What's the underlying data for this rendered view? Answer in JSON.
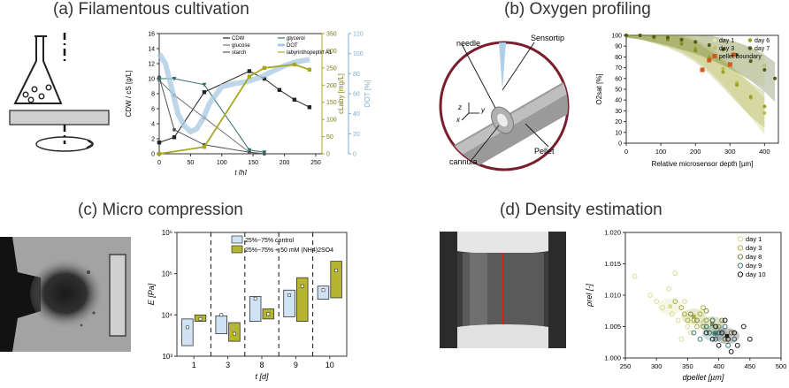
{
  "panels": {
    "a": {
      "title": "(a) Filamentous cultivation"
    },
    "b": {
      "title": "(b) Oxygen profiling"
    },
    "c": {
      "title": "(c) Micro compression"
    },
    "d": {
      "title": "(d) Density estimation"
    }
  },
  "colors": {
    "olive": "#a8a820",
    "olive_dark": "#7a7a10",
    "dot_blue": "#a8c8e0",
    "dot_axis": "#7aaed6",
    "maroon": "#7a1e2e",
    "box_blue": "#cfe3f5",
    "box_olive": "#b5b530",
    "pellet_orange": "#d05a1e"
  },
  "diagram_b": {
    "needle": "needle",
    "sensortip": "Sensortip",
    "cannula": "cannula",
    "pellet": "Pellet",
    "axis_x": "x",
    "axis_y": "y",
    "axis_z": "z"
  },
  "chart_data": [
    {
      "type": "line",
      "xlabel": "t [h]",
      "ylabel": "CDW / cS [g/L]",
      "ylabel_right1": "cLaby [mg/L]",
      "ylabel_right2": "DOT [%]",
      "xlim": [
        0,
        260
      ],
      "ylim": [
        0,
        16
      ],
      "ylim_right1": [
        0,
        350
      ],
      "ylim_right2": [
        0,
        120
      ],
      "x_ticks": [
        "0",
        "50",
        "100",
        "150",
        "200",
        "250"
      ],
      "y_ticks": [
        "0",
        "2",
        "4",
        "6",
        "8",
        "10",
        "12",
        "14",
        "16"
      ],
      "y_right1_ticks": [
        "0",
        "50",
        "100",
        "150",
        "200",
        "250",
        "300",
        "350"
      ],
      "y_right2_ticks": [
        "0",
        "20",
        "40",
        "60",
        "80",
        "100",
        "120"
      ],
      "series": [
        {
          "name": "CDW",
          "axis": "left",
          "x": [
            0,
            24,
            72,
            144,
            168,
            192,
            216,
            240
          ],
          "y": [
            1.5,
            2.2,
            8.2,
            11.0,
            10.0,
            8.5,
            7.2,
            6.2
          ]
        },
        {
          "name": "glucose",
          "axis": "left",
          "x": [
            0,
            24,
            72,
            144,
            168
          ],
          "y": [
            9.8,
            7.8,
            4.8,
            0.2,
            0.0
          ]
        },
        {
          "name": "starch",
          "axis": "left",
          "x": [
            0,
            24,
            72,
            144,
            168
          ],
          "y": [
            10.2,
            3.2,
            1.2,
            0.2,
            0.0
          ]
        },
        {
          "name": "glycerol",
          "axis": "left",
          "x": [
            0,
            24,
            72,
            144,
            168
          ],
          "y": [
            10.0,
            10.0,
            9.2,
            0.5,
            0.2
          ]
        },
        {
          "name": "DOT",
          "axis": "right2",
          "x": [
            0,
            10,
            20,
            30,
            40,
            50,
            60,
            70,
            80,
            100,
            120,
            140,
            160,
            180,
            200,
            220,
            240
          ],
          "y": [
            100,
            90,
            65,
            40,
            28,
            22,
            25,
            35,
            50,
            67,
            70,
            72,
            76,
            82,
            88,
            92,
            94
          ]
        },
        {
          "name": "labyrinthopeptin A1",
          "axis": "right1",
          "x": [
            0,
            72,
            144,
            168,
            216,
            240
          ],
          "y": [
            0,
            20,
            225,
            250,
            260,
            245
          ]
        }
      ]
    },
    {
      "type": "scatter",
      "xlabel": "Relative microsensor depth [µm]",
      "ylabel": "O2sat [%]",
      "xlim": [
        0,
        440
      ],
      "ylim": [
        0,
        100
      ],
      "x_ticks": [
        "0",
        "100",
        "200",
        "300",
        "400"
      ],
      "y_ticks": [
        "0",
        "10",
        "20",
        "30",
        "40",
        "50",
        "60",
        "70",
        "80",
        "90",
        "100"
      ],
      "series": [
        {
          "name": "day 1",
          "x": [
            0,
            40,
            80,
            120,
            160,
            200,
            240,
            280,
            320,
            360,
            400
          ],
          "y": [
            100,
            100,
            99,
            98,
            96,
            93,
            90,
            86,
            82,
            77,
            72
          ]
        },
        {
          "name": "day 3",
          "x": [
            0,
            40,
            80,
            120,
            160,
            200,
            240,
            280,
            320,
            360,
            400
          ],
          "y": [
            100,
            100,
            99,
            97,
            94,
            88,
            80,
            69,
            56,
            42,
            28
          ]
        },
        {
          "name": "day 6",
          "x": [
            0,
            40,
            80,
            120,
            160,
            200,
            240,
            280,
            320,
            360,
            400
          ],
          "y": [
            100,
            100,
            98,
            96,
            92,
            86,
            77,
            66,
            54,
            43,
            34
          ]
        },
        {
          "name": "day 7",
          "x": [
            0,
            40,
            80,
            120,
            160,
            200,
            240,
            280,
            320,
            360,
            400,
            430
          ],
          "y": [
            100,
            100,
            99,
            98,
            96,
            94,
            91,
            87,
            82,
            76,
            68,
            60
          ]
        },
        {
          "name": "pellet boundary",
          "x": [
            220,
            240,
            300,
            310
          ],
          "y": [
            68,
            77,
            73,
            82
          ]
        }
      ]
    },
    {
      "type": "bar",
      "xlabel": "t [d]",
      "ylabel": "E [Pa]",
      "ylim": [
        1000,
        1000000
      ],
      "y_ticks": [
        "10^3",
        "10^4",
        "10^5",
        "10^6"
      ],
      "categories": [
        "1",
        "3",
        "8",
        "9",
        "10"
      ],
      "series": [
        {
          "name": "25%~75% control",
          "q1": [
            1800,
            3500,
            7000,
            9000,
            24000
          ],
          "q3": [
            8000,
            9500,
            28000,
            40000,
            50000
          ],
          "mean": [
            5000,
            10000,
            25000,
            30000,
            40000
          ]
        },
        {
          "name": "25%~75% + 50 mM (NH4)2SO4",
          "q1": [
            7000,
            2300,
            8000,
            7000,
            26000
          ],
          "q3": [
            10000,
            6500,
            14000,
            80000,
            200000
          ],
          "mean": [
            8000,
            3500,
            10500,
            50000,
            120000
          ]
        }
      ]
    },
    {
      "type": "scatter",
      "xlabel": "dpellet [µm]",
      "ylabel": "ρrel [-]",
      "xlim": [
        250,
        500
      ],
      "ylim": [
        1.0,
        1.02
      ],
      "x_ticks": [
        "250",
        "300",
        "350",
        "400",
        "450",
        "500"
      ],
      "y_ticks": [
        "1.000",
        "1.005",
        "1.010",
        "1.015",
        "1.020"
      ],
      "series": [
        {
          "name": "day 1",
          "x": [
            265,
            290,
            300,
            310,
            320,
            325,
            335,
            345,
            350,
            355,
            330,
            340
          ],
          "y": [
            1.013,
            1.01,
            1.009,
            1.008,
            1.011,
            1.007,
            1.006,
            1.009,
            1.005,
            1.004,
            1.0135,
            1.003
          ]
        },
        {
          "name": "day 3",
          "x": [
            330,
            340,
            345,
            350,
            360,
            365,
            370,
            380,
            385,
            375
          ],
          "y": [
            1.009,
            1.008,
            1.007,
            1.006,
            1.006,
            1.005,
            1.007,
            1.006,
            1.004,
            1.008
          ]
        },
        {
          "name": "day 8",
          "x": [
            355,
            365,
            375,
            380,
            390,
            395,
            400,
            405,
            410,
            420
          ],
          "y": [
            1.007,
            1.006,
            1.005,
            1.0075,
            1.006,
            1.004,
            1.005,
            1.006,
            1.003,
            1.004
          ]
        },
        {
          "name": "day 9",
          "x": [
            360,
            370,
            380,
            385,
            390,
            395,
            400,
            410,
            415,
            425
          ],
          "y": [
            1.004,
            1.003,
            1.005,
            1.004,
            1.006,
            1.003,
            1.004,
            1.005,
            1.002,
            1.003
          ]
        },
        {
          "name": "day 10",
          "x": [
            380,
            390,
            395,
            400,
            405,
            410,
            415,
            420,
            425,
            430,
            440,
            450
          ],
          "y": [
            1.004,
            1.003,
            1.005,
            1.002,
            1.004,
            1.006,
            1.003,
            1.001,
            1.004,
            1.002,
            1.005,
            1.003
          ]
        }
      ]
    }
  ]
}
